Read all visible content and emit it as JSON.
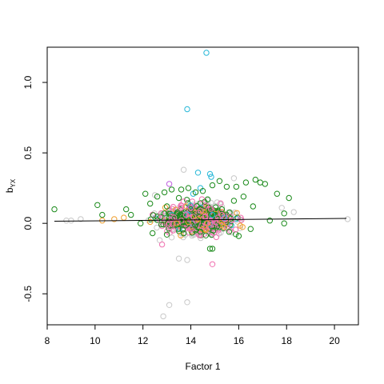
{
  "chart_data": {
    "type": "scatter",
    "xlabel": "Factor 1",
    "ylabel_main": "b",
    "ylabel_sub": "YX",
    "xlim": [
      8,
      21
    ],
    "ylim": [
      -0.72,
      1.25
    ],
    "x_ticks": [
      8,
      10,
      12,
      14,
      16,
      18,
      20
    ],
    "y_ticks": [
      -0.5,
      0.0,
      0.5,
      1.0
    ],
    "y_tick_labels": [
      "-0.5",
      "0.0",
      "0.5",
      "1.0"
    ],
    "colors": {
      "grey": "#c8c8c8",
      "green": "#1a8a1a",
      "cyan": "#27b8d8",
      "pink": "#f070b0",
      "orange": "#f0a030",
      "purple": "#c060e0",
      "trend": "#000000"
    },
    "trend_line": {
      "x": [
        8.3,
        20.5
      ],
      "y": [
        0.015,
        0.035
      ]
    },
    "series": [
      {
        "color": "cyan",
        "points": [
          [
            14.65,
            1.21
          ],
          [
            13.85,
            0.81
          ],
          [
            14.3,
            0.36
          ],
          [
            14.85,
            0.33
          ],
          [
            14.8,
            0.35
          ],
          [
            14.4,
            0.25
          ],
          [
            14.1,
            0.21
          ],
          [
            15.4,
            0.04
          ],
          [
            14.9,
            0.06
          ]
        ]
      },
      {
        "color": "grey",
        "points": [
          [
            12.85,
            -0.66
          ],
          [
            13.1,
            -0.58
          ],
          [
            13.85,
            -0.56
          ],
          [
            13.5,
            -0.25
          ],
          [
            13.85,
            -0.26
          ],
          [
            13.7,
            0.38
          ],
          [
            9.0,
            0.02
          ],
          [
            9.4,
            0.03
          ],
          [
            8.8,
            0.02
          ],
          [
            17.8,
            0.11
          ],
          [
            18.3,
            0.08
          ],
          [
            20.55,
            0.03
          ],
          [
            15.8,
            0.32
          ],
          [
            12.5,
            0.2
          ],
          [
            12.7,
            -0.12
          ],
          [
            13.2,
            -0.1
          ]
        ]
      },
      {
        "color": "green",
        "points": [
          [
            8.3,
            0.1
          ],
          [
            10.1,
            0.13
          ],
          [
            10.3,
            0.06
          ],
          [
            11.3,
            0.1
          ],
          [
            11.5,
            0.06
          ],
          [
            12.1,
            0.21
          ],
          [
            12.3,
            0.14
          ],
          [
            12.6,
            0.19
          ],
          [
            12.9,
            0.22
          ],
          [
            13.2,
            0.24
          ],
          [
            13.6,
            0.24
          ],
          [
            13.9,
            0.25
          ],
          [
            14.2,
            0.22
          ],
          [
            14.5,
            0.23
          ],
          [
            14.9,
            0.27
          ],
          [
            15.2,
            0.3
          ],
          [
            15.5,
            0.26
          ],
          [
            15.9,
            0.26
          ],
          [
            16.3,
            0.29
          ],
          [
            16.7,
            0.31
          ],
          [
            16.9,
            0.29
          ],
          [
            17.1,
            0.28
          ],
          [
            17.6,
            0.21
          ],
          [
            18.1,
            0.18
          ],
          [
            17.9,
            0.07
          ],
          [
            16.2,
            0.19
          ],
          [
            15.8,
            0.16
          ],
          [
            14.7,
            0.17
          ],
          [
            13.5,
            0.18
          ],
          [
            12.9,
            0.07
          ],
          [
            11.9,
            0.0
          ],
          [
            12.4,
            -0.07
          ],
          [
            13.0,
            -0.08
          ],
          [
            13.7,
            -0.07
          ],
          [
            14.4,
            -0.06
          ],
          [
            15.1,
            -0.02
          ],
          [
            15.6,
            -0.06
          ],
          [
            16.0,
            -0.09
          ],
          [
            16.5,
            -0.04
          ],
          [
            17.3,
            0.02
          ],
          [
            17.9,
            0.0
          ],
          [
            14.8,
            -0.18
          ],
          [
            14.9,
            -0.18
          ],
          [
            13.0,
            0.12
          ],
          [
            14.0,
            0.1
          ],
          [
            15.3,
            0.1
          ],
          [
            16.6,
            0.12
          ]
        ]
      },
      {
        "color": "pink",
        "points": [
          [
            14.9,
            -0.29
          ],
          [
            13.3,
            0.04
          ],
          [
            13.8,
            0.06
          ],
          [
            14.2,
            0.02
          ],
          [
            14.6,
            0.05
          ],
          [
            15.0,
            0.01
          ],
          [
            15.3,
            0.06
          ],
          [
            14.4,
            0.09
          ],
          [
            13.6,
            0.02
          ],
          [
            12.8,
            -0.15
          ],
          [
            13.1,
            0.0
          ],
          [
            14.0,
            -0.04
          ]
        ]
      },
      {
        "color": "orange",
        "points": [
          [
            10.3,
            0.02
          ],
          [
            10.8,
            0.03
          ],
          [
            11.2,
            0.04
          ],
          [
            12.3,
            0.01
          ],
          [
            13.4,
            0.0
          ],
          [
            14.3,
            0.03
          ],
          [
            13.9,
            0.01
          ],
          [
            14.7,
            0.0
          ]
        ]
      },
      {
        "color": "purple",
        "points": [
          [
            13.1,
            0.28
          ],
          [
            14.0,
            0.11
          ]
        ]
      }
    ],
    "cloud": {
      "description_free": true,
      "x_center": 14.3,
      "x_spread": 1.8,
      "y_center": 0.03,
      "y_spread": 0.075,
      "count": 900,
      "mix": {
        "grey": 0.35,
        "pink": 0.3,
        "green": 0.25,
        "orange": 0.07,
        "cyan": 0.03
      }
    }
  }
}
